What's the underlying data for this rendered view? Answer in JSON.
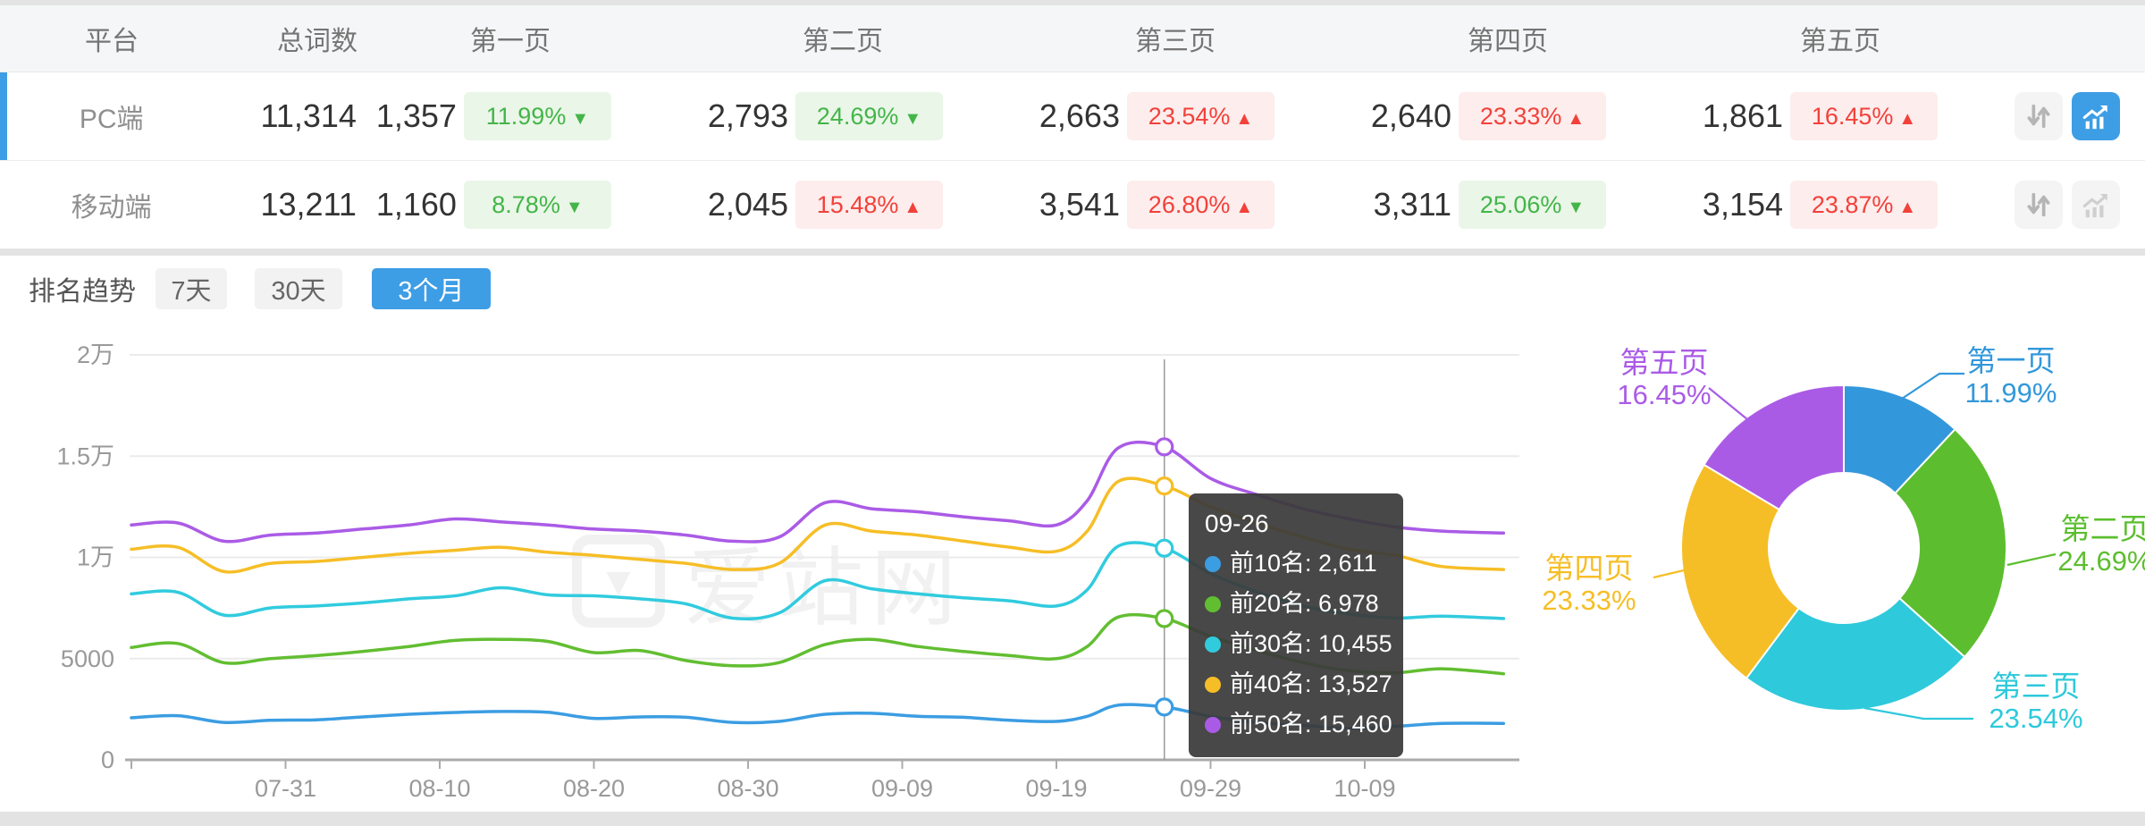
{
  "table": {
    "columns": [
      "平台",
      "总词数",
      "第一页",
      "第二页",
      "第三页",
      "第四页",
      "第五页"
    ],
    "rows": [
      {
        "platform": "PC端",
        "state": "selected",
        "total": "11,314",
        "pages": [
          {
            "value": "1,357",
            "pct": "11.99%",
            "dir": "down",
            "arrow": "▼"
          },
          {
            "value": "2,793",
            "pct": "24.69%",
            "dir": "down",
            "arrow": "▼"
          },
          {
            "value": "2,663",
            "pct": "23.54%",
            "dir": "up",
            "arrow": "▲"
          },
          {
            "value": "2,640",
            "pct": "23.33%",
            "dir": "up",
            "arrow": "▲"
          },
          {
            "value": "1,861",
            "pct": "16.45%",
            "dir": "up",
            "arrow": "▲"
          }
        ],
        "chart_btn_state": "active"
      },
      {
        "platform": "移动端",
        "state": "",
        "total": "13,211",
        "pages": [
          {
            "value": "1,160",
            "pct": "8.78%",
            "dir": "down",
            "arrow": "▼"
          },
          {
            "value": "2,045",
            "pct": "15.48%",
            "dir": "up",
            "arrow": "▲"
          },
          {
            "value": "3,541",
            "pct": "26.80%",
            "dir": "up",
            "arrow": "▲"
          },
          {
            "value": "3,311",
            "pct": "25.06%",
            "dir": "down",
            "arrow": "▼"
          },
          {
            "value": "3,154",
            "pct": "23.87%",
            "dir": "up",
            "arrow": "▲"
          }
        ],
        "chart_btn_state": ""
      }
    ]
  },
  "trend_section": {
    "title": "排名趋势",
    "tabs": [
      {
        "label": "7天",
        "state": ""
      },
      {
        "label": "30天",
        "state": ""
      },
      {
        "label": "3个月",
        "state": "active"
      }
    ]
  },
  "watermark": "爱站网",
  "watermark_glyph": "▼",
  "colors": {
    "accent": "#3d9de5",
    "up_red": "#f2413a",
    "down_green": "#44b549"
  },
  "chart_data": [
    {
      "type": "line",
      "title": "排名趋势 3个月",
      "ylim": [
        0,
        20000
      ],
      "grid": true,
      "y_ticks": [
        {
          "value": 20000,
          "label": "2万"
        },
        {
          "value": 15000,
          "label": "1.5万"
        },
        {
          "value": 10000,
          "label": "1万"
        },
        {
          "value": 5000,
          "label": "5000"
        },
        {
          "value": 0,
          "label": "0"
        }
      ],
      "x_ticks": [
        {
          "day": 10,
          "label": "07-31"
        },
        {
          "day": 20,
          "label": "08-10"
        },
        {
          "day": 30,
          "label": "08-20"
        },
        {
          "day": 40,
          "label": "08-30"
        },
        {
          "day": 50,
          "label": "09-09"
        },
        {
          "day": 60,
          "label": "09-19"
        },
        {
          "day": 70,
          "label": "09-29"
        },
        {
          "day": 80,
          "label": "10-09"
        }
      ],
      "days": [
        0,
        3,
        6,
        9,
        12,
        15,
        18,
        21,
        24,
        27,
        30,
        33,
        36,
        39,
        42,
        45,
        48,
        51,
        54,
        57,
        60,
        62,
        64,
        67,
        70,
        73,
        76,
        79,
        82,
        85,
        89
      ],
      "series": [
        {
          "name": "前10名",
          "color": "#3b9de2",
          "values": [
            2080,
            2180,
            1850,
            1950,
            1980,
            2120,
            2250,
            2340,
            2390,
            2350,
            2050,
            2120,
            2100,
            1850,
            1900,
            2250,
            2300,
            2150,
            2100,
            1950,
            1900,
            2150,
            2700,
            2611,
            2150,
            1850,
            1700,
            1550,
            1650,
            1800,
            1800
          ]
        },
        {
          "name": "前20名",
          "color": "#62be31",
          "values": [
            5550,
            5750,
            4800,
            5000,
            5150,
            5350,
            5600,
            5900,
            5950,
            5850,
            5300,
            5400,
            4900,
            4650,
            4800,
            5700,
            5950,
            5600,
            5350,
            5150,
            5000,
            5600,
            7050,
            6978,
            6100,
            5400,
            4800,
            4400,
            4300,
            4500,
            4250
          ]
        },
        {
          "name": "前30名",
          "color": "#31cbde",
          "values": [
            8200,
            8280,
            7150,
            7500,
            7600,
            7750,
            7950,
            8100,
            8500,
            8150,
            8100,
            7950,
            7700,
            7000,
            7250,
            8850,
            8450,
            8200,
            8000,
            7850,
            7600,
            8400,
            10550,
            10455,
            9200,
            8300,
            7600,
            7200,
            7000,
            7100,
            6980
          ]
        },
        {
          "name": "前40名",
          "color": "#f6be26",
          "values": [
            10400,
            10500,
            9300,
            9700,
            9800,
            10000,
            10200,
            10350,
            10500,
            10250,
            10100,
            9900,
            9700,
            9400,
            9700,
            11600,
            11300,
            11100,
            10800,
            10500,
            10300,
            11300,
            13750,
            13527,
            12500,
            11700,
            11000,
            10400,
            10100,
            9550,
            9400
          ]
        },
        {
          "name": "前50名",
          "color": "#aa5be6",
          "values": [
            11600,
            11700,
            10800,
            11100,
            11200,
            11400,
            11600,
            11900,
            11750,
            11600,
            11400,
            11300,
            11100,
            10800,
            11000,
            12700,
            12400,
            12250,
            12000,
            11800,
            11600,
            12800,
            15400,
            15460,
            13900,
            13100,
            12400,
            11900,
            11500,
            11300,
            11200
          ]
        }
      ],
      "tooltip": {
        "date": "09-26",
        "day": 67,
        "items": [
          {
            "label": "前10名",
            "value": "2,611",
            "color": "#3b9de2"
          },
          {
            "label": "前20名",
            "value": "6,978",
            "color": "#62be31"
          },
          {
            "label": "前30名",
            "value": "10,455",
            "color": "#31cbde"
          },
          {
            "label": "前40名",
            "value": "13,527",
            "color": "#f6be26"
          },
          {
            "label": "前50名",
            "value": "15,460",
            "color": "#aa5be6"
          }
        ]
      }
    },
    {
      "type": "pie",
      "donut": true,
      "labels": [
        "第一页",
        "第二页",
        "第三页",
        "第四页",
        "第五页"
      ],
      "pct_labels": [
        "11.99%",
        "24.69%",
        "23.54%",
        "23.33%",
        "16.45%"
      ],
      "values": [
        11.99,
        24.69,
        23.54,
        23.33,
        16.45
      ],
      "colors": [
        "#3398db",
        "#5cbe2f",
        "#2ec9db",
        "#f6be26",
        "#aa5be6"
      ]
    }
  ]
}
